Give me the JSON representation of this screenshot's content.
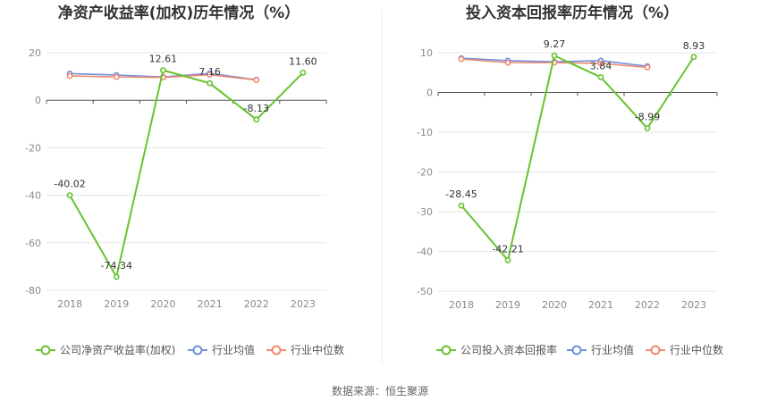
{
  "source": "数据来源：恒生聚源",
  "chart_data": [
    {
      "type": "line",
      "title": "净资产收益率(加权)历年情况（%）",
      "categories": [
        "2018",
        "2019",
        "2020",
        "2021",
        "2022",
        "2023"
      ],
      "ylim": [
        -80,
        20
      ],
      "yticks": [
        20,
        0,
        -20,
        -40,
        -60,
        -80
      ],
      "grid": true,
      "legend": "bottom",
      "series": [
        {
          "name": "公司净资产收益率(加权)",
          "color": "#66c32e",
          "values": [
            -40.02,
            -74.34,
            12.61,
            7.16,
            -8.13,
            11.6
          ],
          "labels": [
            "-40.02",
            "-74.34",
            "12.61",
            "7.16",
            "-8.13",
            "11.60"
          ]
        },
        {
          "name": "行业均值",
          "color": "#6f8fdc",
          "values": [
            11.2,
            10.6,
            9.8,
            11.3,
            8.6,
            null
          ]
        },
        {
          "name": "行业中位数",
          "color": "#f08a6e",
          "values": [
            10.2,
            9.8,
            9.6,
            10.7,
            8.5,
            null
          ]
        }
      ]
    },
    {
      "type": "line",
      "title": "投入资本回报率历年情况（%）",
      "categories": [
        "2018",
        "2019",
        "2020",
        "2021",
        "2022",
        "2023"
      ],
      "ylim": [
        -50,
        10
      ],
      "yticks": [
        10,
        0,
        -10,
        -20,
        -30,
        -40,
        -50
      ],
      "grid": true,
      "legend": "bottom",
      "series": [
        {
          "name": "公司投入资本回报率",
          "color": "#66c32e",
          "values": [
            -28.45,
            -42.21,
            9.27,
            3.84,
            -8.99,
            8.93
          ],
          "labels": [
            "-28.45",
            "-42.21",
            "9.27",
            "3.84",
            "-8.99",
            "8.93"
          ]
        },
        {
          "name": "行业均值",
          "color": "#6f8fdc",
          "values": [
            8.6,
            8.0,
            7.7,
            8.0,
            6.6,
            null
          ]
        },
        {
          "name": "行业中位数",
          "color": "#f08a6e",
          "values": [
            8.4,
            7.5,
            7.5,
            7.3,
            6.3,
            null
          ]
        }
      ]
    }
  ]
}
